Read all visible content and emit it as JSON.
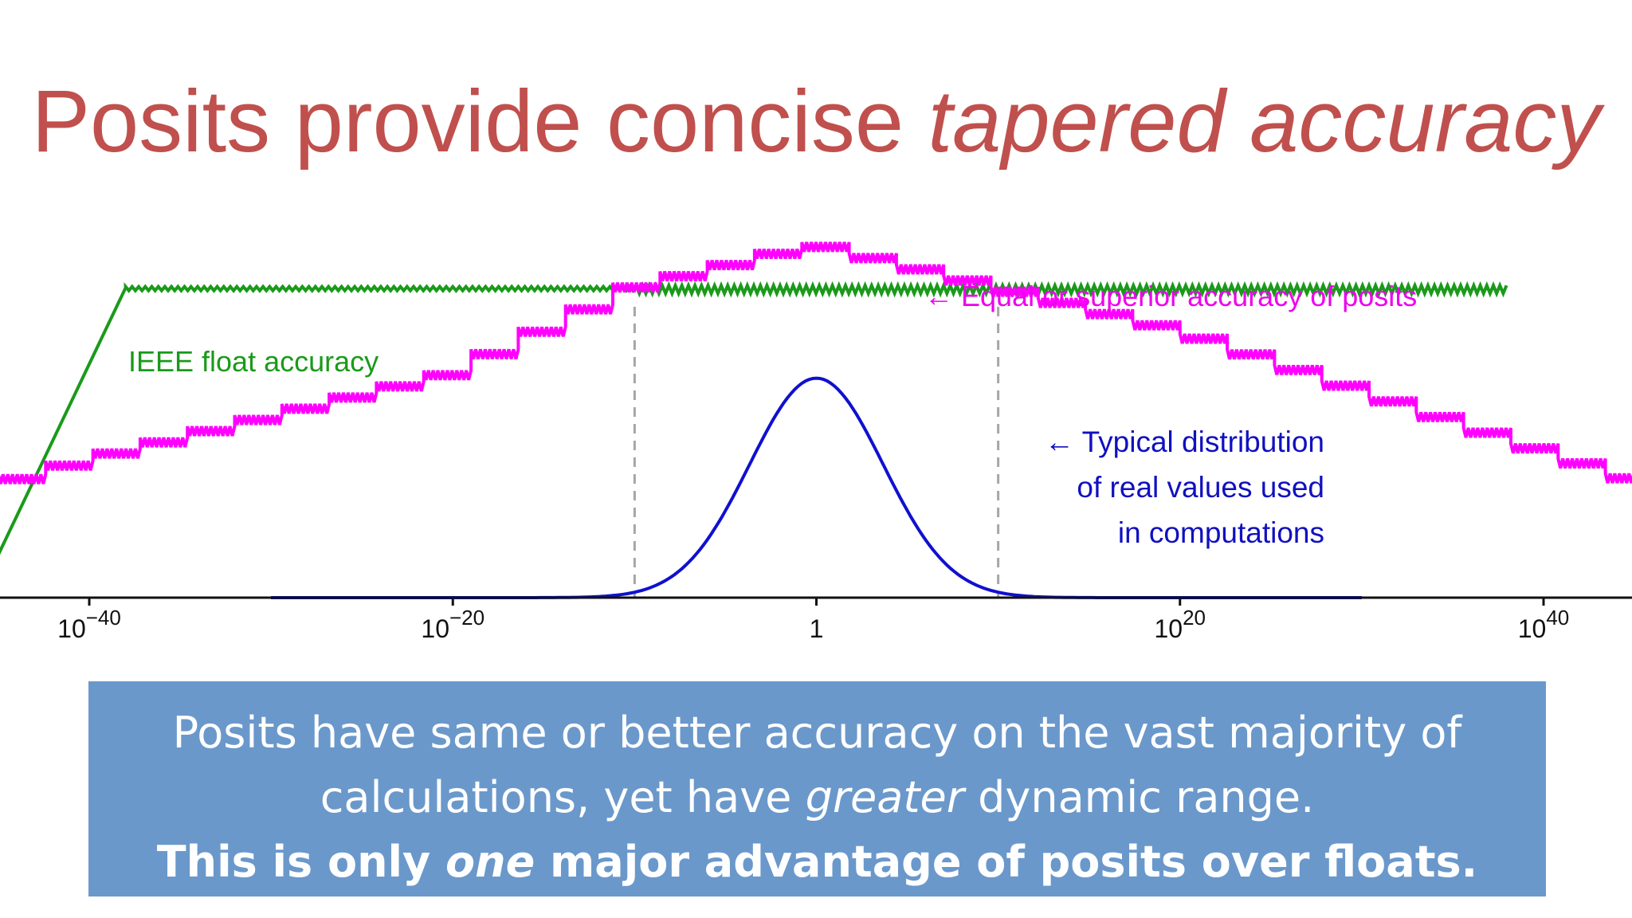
{
  "slide": {
    "title_pre": "Posits provide concise ",
    "title_em": "tapered accuracy",
    "callout": {
      "line1": "Posits have same or better accuracy on the vast majority of",
      "line2_pre": "calculations, yet have ",
      "line2_em": "greater",
      "line2_post": " dynamic range.",
      "line3_pre": "This is only ",
      "line3_em": "one",
      "line3_post": " major advantage of posits over floats."
    }
  },
  "chart_data": {
    "type": "line",
    "title": "",
    "xlabel": "",
    "ylabel": "",
    "x_scale": "log10",
    "xlim": [
      "1e-45",
      "1e46"
    ],
    "x_ticks": [
      {
        "base": "10",
        "exp": "−40",
        "value": "1e-40"
      },
      {
        "base": "10",
        "exp": "−20",
        "value": "1e-20"
      },
      {
        "base": "1",
        "exp": "",
        "value": "1"
      },
      {
        "base": "10",
        "exp": "20",
        "value": "1e20"
      },
      {
        "base": "10",
        "exp": "40",
        "value": "1e40"
      }
    ],
    "series": [
      {
        "name": "IEEE float accuracy",
        "color": "#1a9a1a",
        "points": [
          [
            "1e-45",
            1.0
          ],
          [
            "1e-38",
            7.2
          ],
          [
            "1e38",
            7.2
          ]
        ]
      },
      {
        "name": "posit accuracy",
        "color": "#ff00ff",
        "points": [
          [
            "1e-45",
            2.6
          ],
          [
            "1e-40",
            3.2
          ],
          [
            "1e-20",
            5.2
          ],
          [
            "1e-10",
            7.2
          ],
          [
            "1e-5",
            7.7
          ],
          [
            "1",
            8.2
          ],
          [
            "1e5",
            7.7
          ],
          [
            "1e10",
            7.2
          ],
          [
            "1e20",
            6.2
          ],
          [
            "1e40",
            3.4
          ],
          [
            "1e46",
            2.6
          ]
        ]
      },
      {
        "name": "Typical distribution of real values used in computations",
        "color": "#1010d0",
        "type": "density",
        "peak_x": "1",
        "peak": 5.1,
        "spread_decades": 5.2
      }
    ],
    "reference_lines_x": [
      "1e-10",
      "1e10"
    ],
    "annotations": {
      "float_label": "IEEE float accuracy",
      "posit_label": "← Equal or superior accuracy of posits",
      "dist_line1": "← Typical distribution",
      "dist_line2": "of real values used",
      "dist_line3": "in computations"
    }
  }
}
